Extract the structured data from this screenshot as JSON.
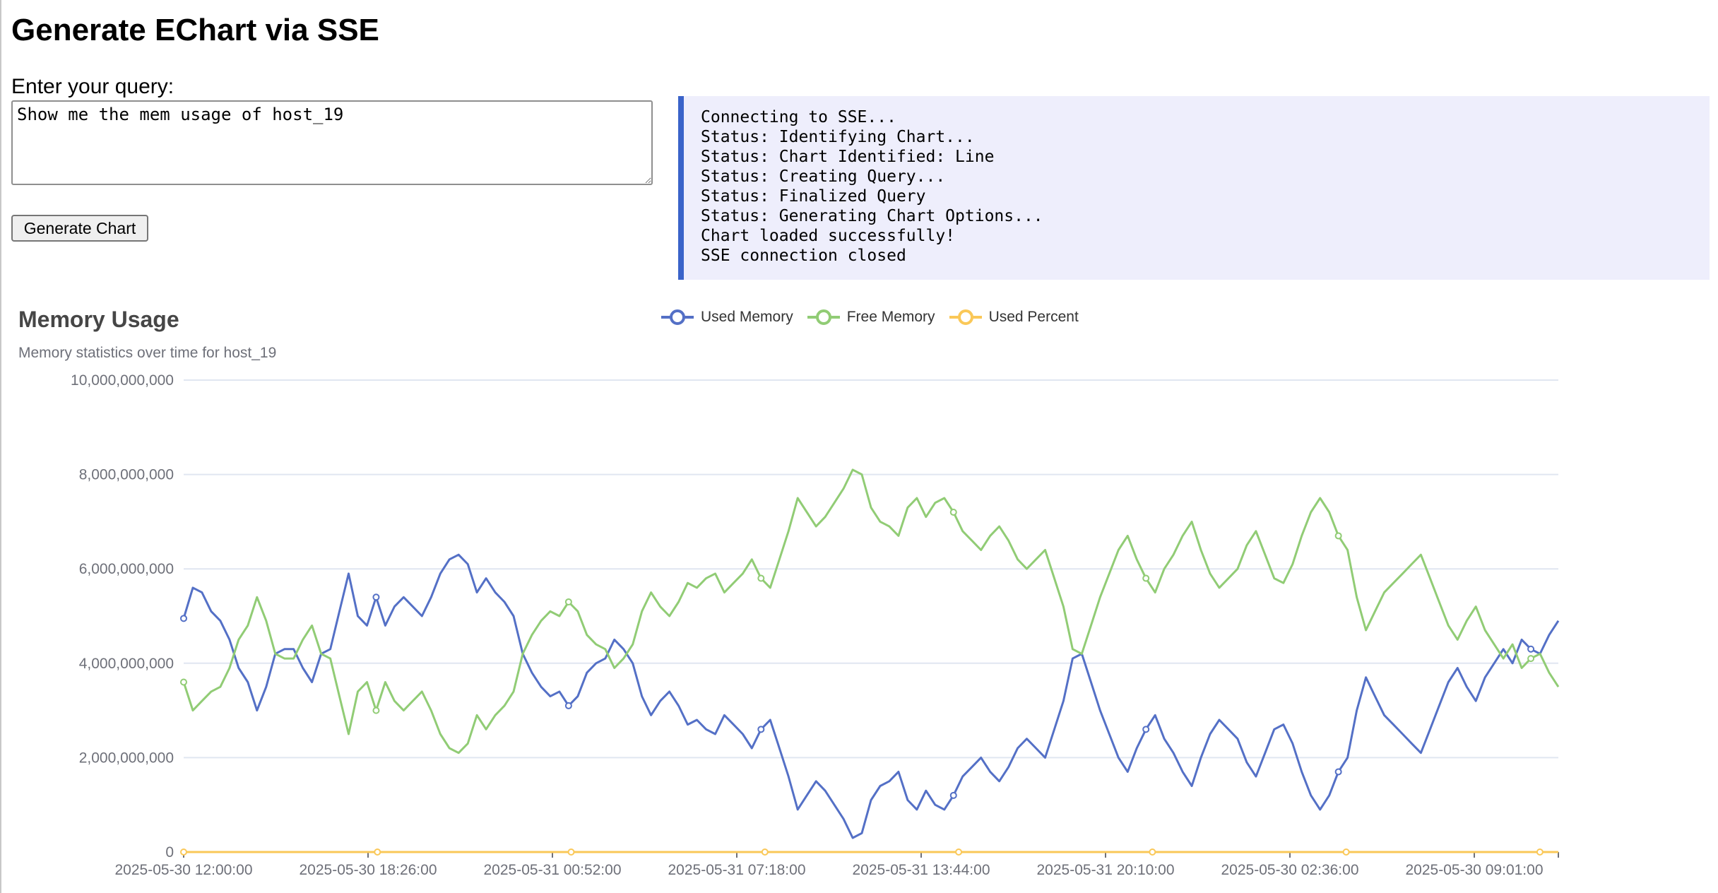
{
  "page": {
    "title": "Generate EChart via SSE"
  },
  "query": {
    "label": "Enter your query:",
    "value": "Show me the mem usage of host_19"
  },
  "button": {
    "label": "Generate Chart"
  },
  "log": {
    "lines": [
      "Connecting to SSE...",
      "Status: Identifying Chart...",
      "Status: Chart Identified: Line",
      "Status: Creating Query...",
      "Status: Finalized Query",
      "Status: Generating Chart Options...",
      "Chart loaded successfully!",
      "SSE connection closed"
    ]
  },
  "colors": {
    "used": "#5470c6",
    "free": "#91cc75",
    "percent": "#fac858",
    "accent": "#3a63c9",
    "log_bg": "#eeeefc"
  },
  "chart_data": {
    "type": "line",
    "title": "Memory Usage",
    "subtitle": "Memory statistics over time for host_19",
    "legend_position": "top-center",
    "ylim": [
      0,
      10000000000
    ],
    "y_ticks": [
      "0",
      "2,000,000,000",
      "4,000,000,000",
      "6,000,000,000",
      "8,000,000,000",
      "10,000,000,000"
    ],
    "x_tick_labels": [
      "2025-05-30 12:00:00",
      "2025-05-30 18:26:00",
      "2025-05-31 00:52:00",
      "2025-05-31 07:18:00",
      "2025-05-31 13:44:00",
      "2025-05-31 20:10:00",
      "2025-05-30 02:36:00",
      "2025-05-30 09:01:00"
    ],
    "grid": true,
    "series": [
      {
        "name": "Used Memory",
        "values": [
          4950000000,
          5600000000,
          5500000000,
          5100000000,
          4900000000,
          4500000000,
          3900000000,
          3600000000,
          3000000000,
          3500000000,
          4200000000,
          4300000000,
          4300000000,
          3900000000,
          3600000000,
          4200000000,
          4300000000,
          5100000000,
          5900000000,
          5000000000,
          4800000000,
          5400000000,
          4800000000,
          5200000000,
          5400000000,
          5200000000,
          5000000000,
          5400000000,
          5900000000,
          6200000000,
          6300000000,
          6100000000,
          5500000000,
          5800000000,
          5500000000,
          5300000000,
          5000000000,
          4200000000,
          3800000000,
          3500000000,
          3300000000,
          3400000000,
          3100000000,
          3300000000,
          3800000000,
          4000000000,
          4100000000,
          4500000000,
          4300000000,
          4000000000,
          3300000000,
          2900000000,
          3200000000,
          3400000000,
          3100000000,
          2700000000,
          2800000000,
          2600000000,
          2500000000,
          2900000000,
          2700000000,
          2500000000,
          2200000000,
          2600000000,
          2800000000,
          2200000000,
          1600000000,
          900000000,
          1200000000,
          1500000000,
          1300000000,
          1000000000,
          700000000,
          300000000,
          400000000,
          1100000000,
          1400000000,
          1500000000,
          1700000000,
          1100000000,
          900000000,
          1300000000,
          1000000000,
          900000000,
          1200000000,
          1600000000,
          1800000000,
          2000000000,
          1700000000,
          1500000000,
          1800000000,
          2200000000,
          2400000000,
          2200000000,
          2000000000,
          2600000000,
          3200000000,
          4100000000,
          4200000000,
          3600000000,
          3000000000,
          2500000000,
          2000000000,
          1700000000,
          2200000000,
          2600000000,
          2900000000,
          2400000000,
          2100000000,
          1700000000,
          1400000000,
          2000000000,
          2500000000,
          2800000000,
          2600000000,
          2400000000,
          1900000000,
          1600000000,
          2100000000,
          2600000000,
          2700000000,
          2300000000,
          1700000000,
          1200000000,
          900000000,
          1200000000,
          1700000000,
          2000000000,
          3000000000,
          3700000000,
          3300000000,
          2900000000,
          2700000000,
          2500000000,
          2300000000,
          2100000000,
          2600000000,
          3100000000,
          3600000000,
          3900000000,
          3500000000,
          3200000000,
          3700000000,
          4000000000,
          4300000000,
          4000000000,
          4500000000,
          4300000000,
          4200000000,
          4600000000,
          4900000000
        ]
      },
      {
        "name": "Free Memory",
        "values": [
          3600000000,
          3000000000,
          3200000000,
          3400000000,
          3500000000,
          3900000000,
          4500000000,
          4800000000,
          5400000000,
          4900000000,
          4200000000,
          4100000000,
          4100000000,
          4500000000,
          4800000000,
          4200000000,
          4100000000,
          3300000000,
          2500000000,
          3400000000,
          3600000000,
          3000000000,
          3600000000,
          3200000000,
          3000000000,
          3200000000,
          3400000000,
          3000000000,
          2500000000,
          2200000000,
          2100000000,
          2300000000,
          2900000000,
          2600000000,
          2900000000,
          3100000000,
          3400000000,
          4200000000,
          4600000000,
          4900000000,
          5100000000,
          5000000000,
          5300000000,
          5100000000,
          4600000000,
          4400000000,
          4300000000,
          3900000000,
          4100000000,
          4400000000,
          5100000000,
          5500000000,
          5200000000,
          5000000000,
          5300000000,
          5700000000,
          5600000000,
          5800000000,
          5900000000,
          5500000000,
          5700000000,
          5900000000,
          6200000000,
          5800000000,
          5600000000,
          6200000000,
          6800000000,
          7500000000,
          7200000000,
          6900000000,
          7100000000,
          7400000000,
          7700000000,
          8100000000,
          8000000000,
          7300000000,
          7000000000,
          6900000000,
          6700000000,
          7300000000,
          7500000000,
          7100000000,
          7400000000,
          7500000000,
          7200000000,
          6800000000,
          6600000000,
          6400000000,
          6700000000,
          6900000000,
          6600000000,
          6200000000,
          6000000000,
          6200000000,
          6400000000,
          5800000000,
          5200000000,
          4300000000,
          4200000000,
          4800000000,
          5400000000,
          5900000000,
          6400000000,
          6700000000,
          6200000000,
          5800000000,
          5500000000,
          6000000000,
          6300000000,
          6700000000,
          7000000000,
          6400000000,
          5900000000,
          5600000000,
          5800000000,
          6000000000,
          6500000000,
          6800000000,
          6300000000,
          5800000000,
          5700000000,
          6100000000,
          6700000000,
          7200000000,
          7500000000,
          7200000000,
          6700000000,
          6400000000,
          5400000000,
          4700000000,
          5100000000,
          5500000000,
          5700000000,
          5900000000,
          6100000000,
          6300000000,
          5800000000,
          5300000000,
          4800000000,
          4500000000,
          4900000000,
          5200000000,
          4700000000,
          4400000000,
          4100000000,
          4400000000,
          3900000000,
          4100000000,
          4200000000,
          3800000000,
          3500000000
        ]
      },
      {
        "name": "Used Percent",
        "values": [
          58,
          60,
          62,
          61,
          59,
          57,
          55,
          53,
          48,
          45,
          42,
          40,
          38,
          36,
          35,
          34,
          33,
          35,
          37,
          40,
          42,
          45,
          47,
          49,
          50,
          51,
          50,
          49,
          48,
          47,
          46,
          45,
          44,
          43,
          42,
          41,
          40,
          39,
          38,
          37,
          36,
          35,
          34,
          33,
          34,
          36,
          38,
          40,
          42,
          44,
          46,
          48,
          50,
          52,
          54,
          55,
          56,
          57,
          58,
          59,
          60,
          61,
          60,
          59,
          58,
          57,
          56,
          55,
          54,
          53,
          52,
          51,
          50,
          49,
          48,
          47,
          46,
          45,
          44,
          43,
          42,
          41,
          40,
          39,
          38,
          37,
          36,
          35,
          34,
          33,
          32,
          31,
          30,
          31,
          32,
          33,
          34,
          35,
          36,
          37,
          38,
          39,
          40,
          41,
          42,
          43,
          44,
          45,
          46,
          47,
          48,
          49,
          50,
          51,
          52,
          53,
          54,
          55,
          56,
          57,
          58,
          59,
          60,
          61,
          62,
          63,
          64,
          63,
          62,
          61,
          60,
          59,
          58,
          57,
          56,
          55,
          54,
          53,
          52,
          51,
          50,
          49,
          48,
          47,
          46,
          45,
          46,
          47,
          48,
          49
        ]
      }
    ]
  }
}
